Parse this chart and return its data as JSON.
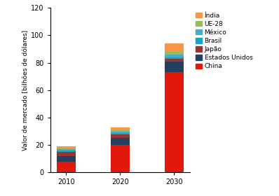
{
  "years": [
    "2010",
    "2020",
    "2030"
  ],
  "series": {
    "China": {
      "values": [
        8,
        20,
        73
      ],
      "color": "#e0190a"
    },
    "Estados Unidos": {
      "values": [
        4,
        5,
        8
      ],
      "color": "#243f60"
    },
    "Japão": {
      "values": [
        3,
        3,
        2
      ],
      "color": "#943634"
    },
    "Brasil": {
      "values": [
        1,
        1,
        1
      ],
      "color": "#17a3c4"
    },
    "México": {
      "values": [
        1,
        1,
        2
      ],
      "color": "#4bacc6"
    },
    "UE-28": {
      "values": [
        1,
        1,
        2
      ],
      "color": "#9bbb59"
    },
    "Índia": {
      "values": [
        1,
        2,
        6
      ],
      "color": "#f79646"
    }
  },
  "legend_order": [
    "Índia",
    "UE-28",
    "México",
    "Brasil",
    "Japão",
    "Estados Unidos",
    "China"
  ],
  "ylabel": "Valor de mercado [bilhões de dólares]",
  "ylim": [
    0,
    120
  ],
  "yticks": [
    0,
    20,
    40,
    60,
    80,
    100,
    120
  ],
  "background_color": "#ffffff",
  "bar_width": 0.35,
  "figsize": [
    3.98,
    2.8
  ],
  "dpi": 100
}
